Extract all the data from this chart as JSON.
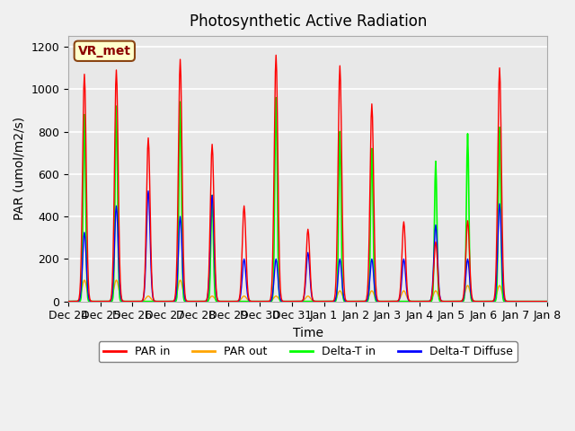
{
  "title": "Photosynthetic Active Radiation",
  "ylabel": "PAR (umol/m2/s)",
  "xlabel": "Time",
  "ylim": [
    0,
    1250
  ],
  "background_color": "#e8e8e8",
  "grid_color": "#ffffff",
  "label_box": "VR_met",
  "legend_labels": [
    "PAR in",
    "PAR out",
    "Delta-T in",
    "Delta-T Diffuse"
  ],
  "legend_colors": [
    "red",
    "orange",
    "lime",
    "blue"
  ],
  "tick_labels": [
    "Dec 24",
    "Dec 25",
    "Dec 26",
    "Dec 27",
    "Dec 28",
    "Dec 29",
    "Dec 30",
    "Dec 31",
    "Jan 1",
    "Jan 2",
    "Jan 3",
    "Jan 4",
    "Jan 5",
    "Jan 6",
    "Jan 7",
    "Jan 8"
  ],
  "n_days": 16,
  "points_per_day": 48,
  "par_in_peaks": [
    1070,
    1090,
    770,
    1140,
    740,
    450,
    1160,
    340,
    1110,
    930,
    375,
    280,
    380,
    1100,
    0,
    0
  ],
  "par_out_peaks": [
    100,
    100,
    25,
    100,
    25,
    25,
    25,
    25,
    50,
    50,
    50,
    50,
    75,
    75,
    0,
    0
  ],
  "delta_t_in_peaks": [
    880,
    920,
    0,
    940,
    500,
    0,
    960,
    0,
    800,
    720,
    0,
    660,
    790,
    820,
    0,
    0
  ],
  "delta_t_diff_peaks": [
    325,
    450,
    520,
    400,
    500,
    200,
    200,
    230,
    200,
    200,
    200,
    360,
    200,
    460,
    0,
    0
  ]
}
